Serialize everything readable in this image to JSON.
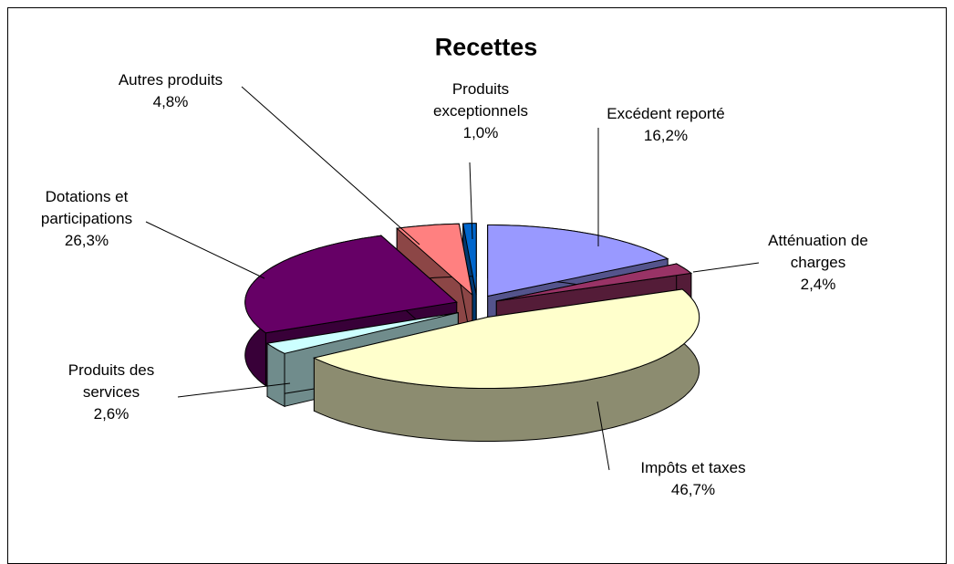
{
  "chart_data": {
    "type": "pie",
    "title": "Recettes",
    "categories": [
      "Excédent reporté",
      "Atténuation de charges",
      "Impôts et taxes",
      "Produits des services",
      "Dotations et participations",
      "Autres produits",
      "Produits exceptionnels"
    ],
    "values": [
      16.2,
      2.4,
      46.7,
      2.6,
      26.3,
      4.8,
      1.0
    ],
    "value_labels": [
      "16,2%",
      "2,4%",
      "46,7%",
      "2,6%",
      "26,3%",
      "4,8%",
      "1,0%"
    ],
    "colors": [
      "#9999ff",
      "#993366",
      "#ffffcc",
      "#ccffff",
      "#660066",
      "#ff8080",
      "#0066cc"
    ]
  }
}
